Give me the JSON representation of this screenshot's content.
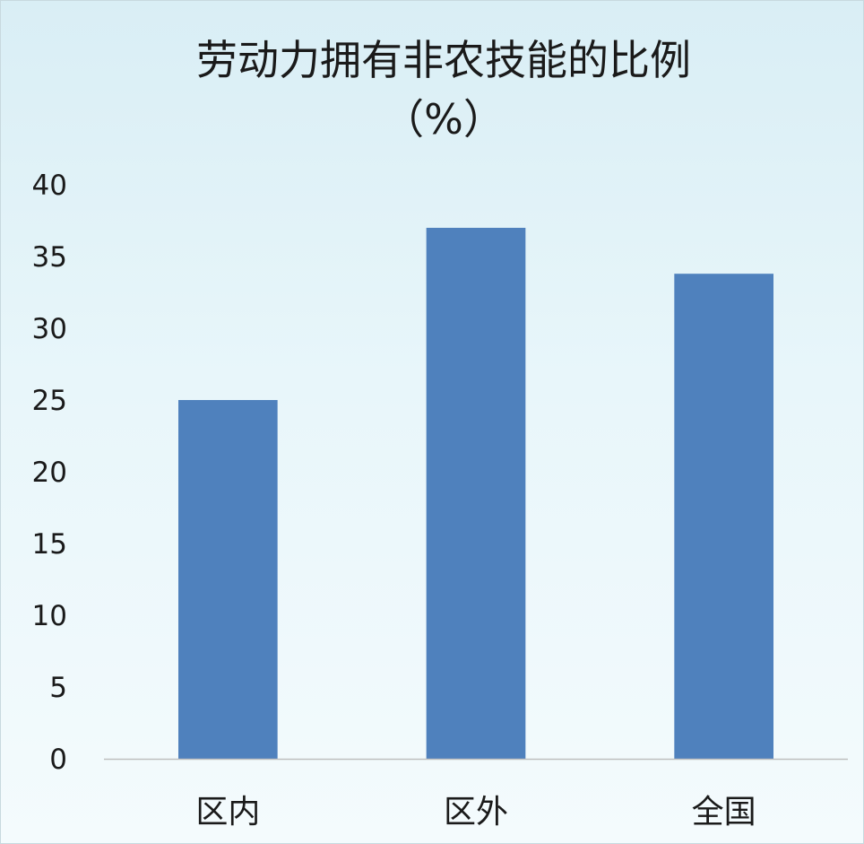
{
  "chart_data": {
    "type": "bar",
    "title": "劳动力拥有非农技能的比例",
    "subtitle": "（%）",
    "categories": [
      "区内",
      "区外",
      "全国"
    ],
    "values": [
      25,
      37,
      33.8
    ],
    "ylim": [
      0,
      40
    ],
    "yticks": [
      0,
      5,
      10,
      15,
      20,
      25,
      30,
      35,
      40
    ],
    "xlabel": "",
    "ylabel": "",
    "grid": false,
    "legend": "none",
    "colors": {
      "bar": "#4f81bd",
      "axis": "#bfbfbf",
      "text": "#1a1a1a"
    }
  }
}
